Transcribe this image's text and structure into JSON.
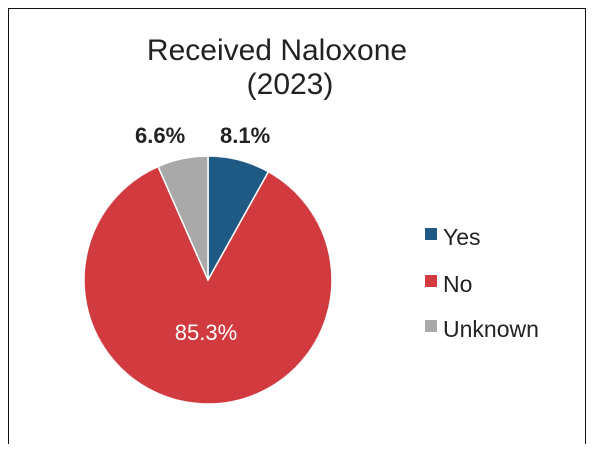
{
  "chart_data": {
    "type": "pie",
    "title_lines": [
      "Received Naloxone",
      "(2023)"
    ],
    "slices": [
      {
        "name": "Yes",
        "value": 8.1,
        "label": "8.1%",
        "color": "#1f5a85"
      },
      {
        "name": "No",
        "value": 85.3,
        "label": "85.3%",
        "color": "#d13a3f"
      },
      {
        "name": "Unknown",
        "value": 6.6,
        "label": "6.6%",
        "color": "#a9a9a9"
      }
    ],
    "legend_position": "right",
    "start_angle": "12 o'clock, clockwise"
  }
}
